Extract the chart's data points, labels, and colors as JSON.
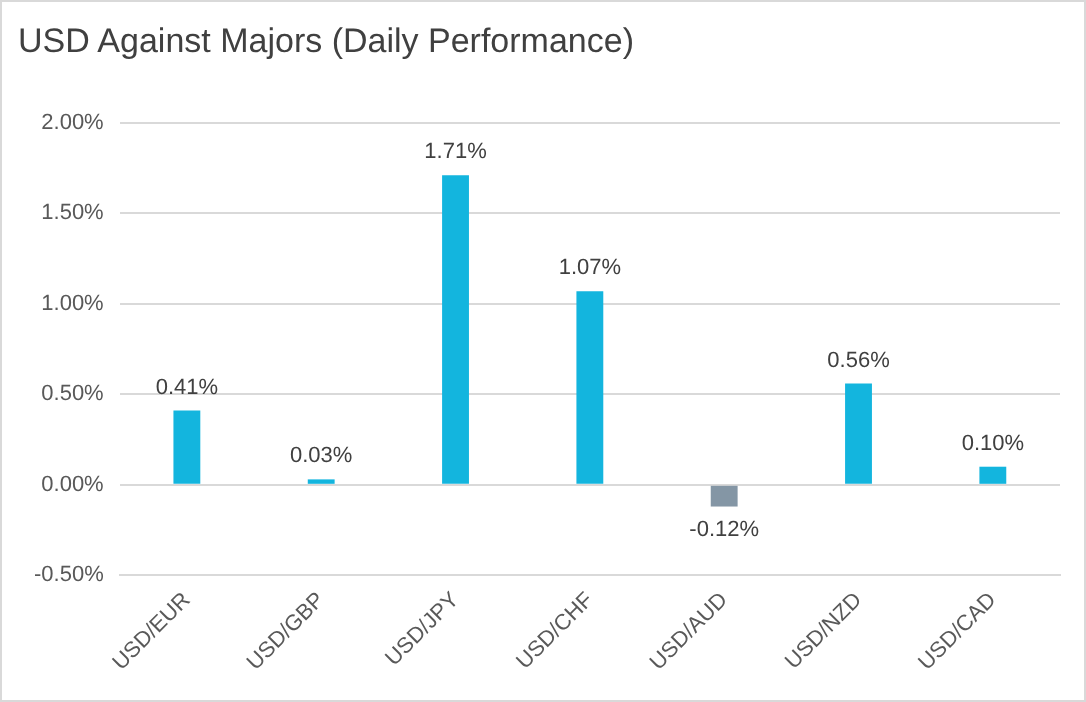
{
  "chart_data": {
    "type": "bar",
    "title": "USD Against Majors (Daily Performance)",
    "categories": [
      "USD/EUR",
      "USD/GBP",
      "USD/JPY",
      "USD/CHF",
      "USD/AUD",
      "USD/NZD",
      "USD/CAD"
    ],
    "values": [
      0.41,
      0.03,
      1.71,
      1.07,
      -0.12,
      0.56,
      0.1
    ],
    "colors": [
      "#13b5de",
      "#13b5de",
      "#13b5de",
      "#13b5de",
      "#8496a5",
      "#13b5de",
      "#13b5de"
    ],
    "value_labels": [
      "0.41%",
      "0.03%",
      "1.71%",
      "1.07%",
      "-0.12%",
      "0.56%",
      "0.10%"
    ],
    "ylim": [
      -0.5,
      2.0
    ],
    "yticks": [
      {
        "value": -0.5,
        "label": "-0.50%"
      },
      {
        "value": 0,
        "label": "0.00%"
      },
      {
        "value": 0.5,
        "label": "0.50%"
      },
      {
        "value": 1.0,
        "label": "1.00%"
      },
      {
        "value": 1.5,
        "label": "1.50%"
      },
      {
        "value": 2.0,
        "label": "2.00%"
      }
    ],
    "grid": "y",
    "legend": false
  }
}
